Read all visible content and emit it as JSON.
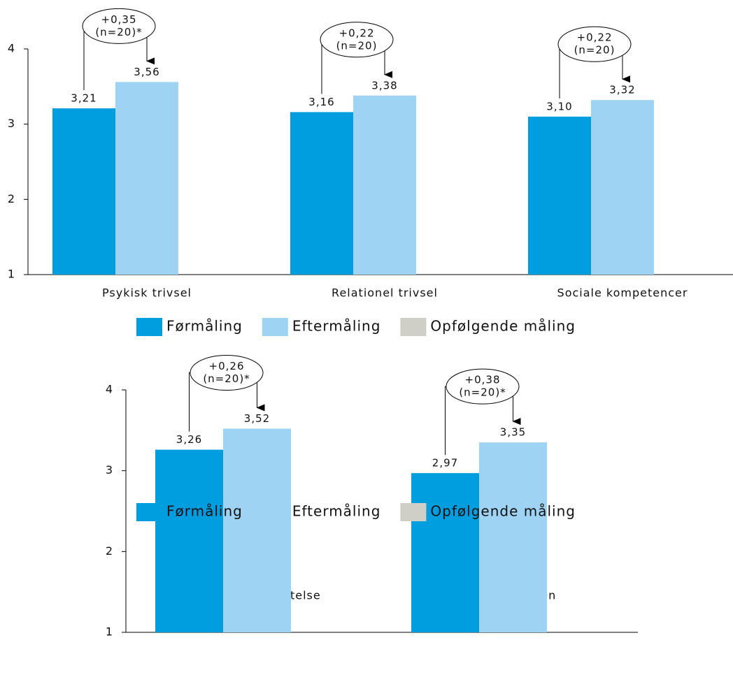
{
  "chart_data": [
    {
      "type": "bar",
      "categories": [
        "Psykisk trivsel",
        "Relationel trivsel",
        "Sociale kompetencer"
      ],
      "series": [
        {
          "name": "Førmåling",
          "color": "#009ddf",
          "values": [
            3.21,
            3.16,
            3.1
          ],
          "value_labels": [
            "3,21",
            "3,16",
            "3,10"
          ]
        },
        {
          "name": "Eftermåling",
          "color": "#9fd3f3",
          "values": [
            3.56,
            3.38,
            3.32
          ],
          "value_labels": [
            "3,56",
            "3,38",
            "3,32"
          ]
        },
        {
          "name": "Opfølgende måling",
          "color": "#cfcfc7",
          "values": [
            null,
            null,
            null
          ]
        }
      ],
      "annotations": [
        [
          "+0,35",
          "(n=20)*"
        ],
        [
          "+0,22",
          "(n=20)"
        ],
        [
          "+0,22",
          "(n=20)"
        ]
      ],
      "ylim": [
        1,
        4
      ],
      "yticks": [
        1,
        2,
        3,
        4
      ]
    },
    {
      "type": "bar",
      "categories": [
        "Positiv selvopfattelse",
        "Trivsel i skolen"
      ],
      "series": [
        {
          "name": "Førmåling",
          "color": "#009ddf",
          "values": [
            3.26,
            2.97
          ],
          "value_labels": [
            "3,26",
            "2,97"
          ]
        },
        {
          "name": "Eftermåling",
          "color": "#9fd3f3",
          "values": [
            3.52,
            3.35
          ],
          "value_labels": [
            "3,52",
            "3,35"
          ]
        },
        {
          "name": "Opfølgende måling",
          "color": "#cfcfc7",
          "values": [
            null,
            null
          ]
        }
      ],
      "annotations": [
        [
          "+0,26",
          "(n=20)*"
        ],
        [
          "+0,38",
          "(n=20)*"
        ]
      ],
      "ylim": [
        1,
        4
      ],
      "yticks": [
        1,
        2,
        3,
        4
      ]
    }
  ]
}
